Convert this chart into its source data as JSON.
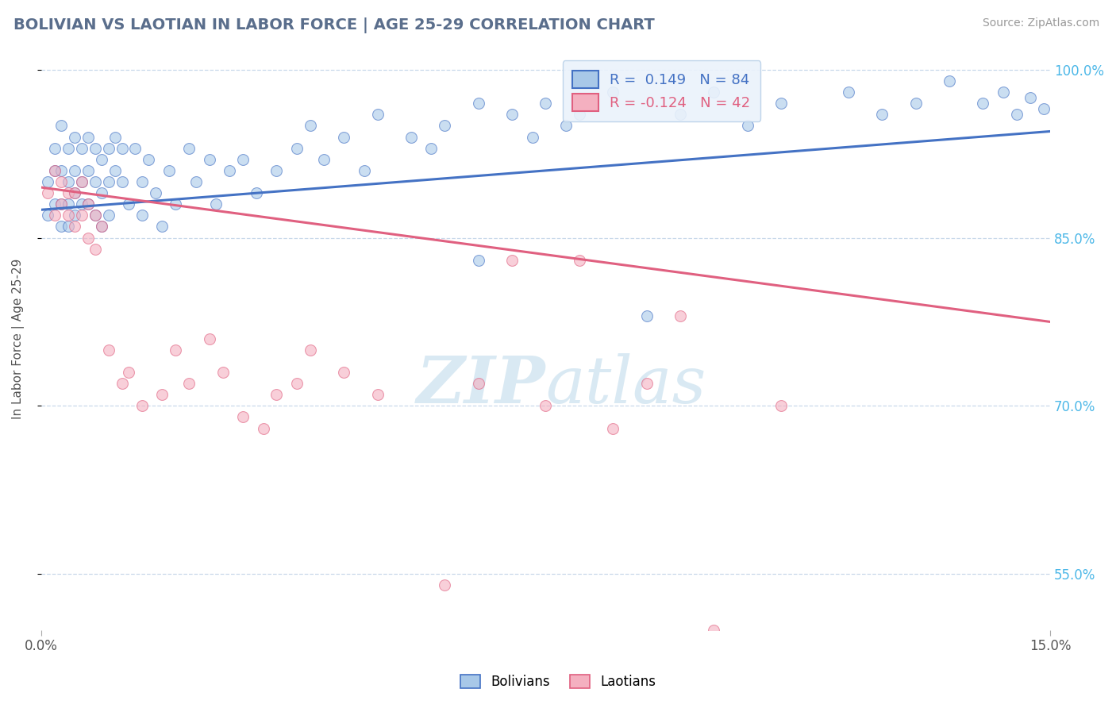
{
  "title": "BOLIVIAN VS LAOTIAN IN LABOR FORCE | AGE 25-29 CORRELATION CHART",
  "source_text": "Source: ZipAtlas.com",
  "ylabel": "In Labor Force | Age 25-29",
  "xlim": [
    0.0,
    0.15
  ],
  "ylim": [
    0.5,
    1.02
  ],
  "yticks": [
    0.55,
    0.7,
    0.85,
    1.0
  ],
  "xticks": [
    0.0,
    0.15
  ],
  "r_blue": 0.149,
  "n_blue": 84,
  "r_pink": -0.124,
  "n_pink": 42,
  "title_color": "#5a6e8c",
  "blue_color": "#a8c8e8",
  "pink_color": "#f4b0c0",
  "line_blue": "#4472c4",
  "line_pink": "#e06080",
  "tick_color": "#4db8e8",
  "watermark_color": "#d0e4f0",
  "blue_scatter": [
    [
      0.001,
      0.9
    ],
    [
      0.001,
      0.87
    ],
    [
      0.002,
      0.93
    ],
    [
      0.002,
      0.91
    ],
    [
      0.002,
      0.88
    ],
    [
      0.003,
      0.95
    ],
    [
      0.003,
      0.91
    ],
    [
      0.003,
      0.88
    ],
    [
      0.003,
      0.86
    ],
    [
      0.004,
      0.93
    ],
    [
      0.004,
      0.9
    ],
    [
      0.004,
      0.88
    ],
    [
      0.004,
      0.86
    ],
    [
      0.005,
      0.94
    ],
    [
      0.005,
      0.91
    ],
    [
      0.005,
      0.89
    ],
    [
      0.005,
      0.87
    ],
    [
      0.006,
      0.93
    ],
    [
      0.006,
      0.9
    ],
    [
      0.006,
      0.88
    ],
    [
      0.007,
      0.94
    ],
    [
      0.007,
      0.91
    ],
    [
      0.007,
      0.88
    ],
    [
      0.008,
      0.93
    ],
    [
      0.008,
      0.9
    ],
    [
      0.008,
      0.87
    ],
    [
      0.009,
      0.92
    ],
    [
      0.009,
      0.89
    ],
    [
      0.009,
      0.86
    ],
    [
      0.01,
      0.93
    ],
    [
      0.01,
      0.9
    ],
    [
      0.01,
      0.87
    ],
    [
      0.011,
      0.94
    ],
    [
      0.011,
      0.91
    ],
    [
      0.012,
      0.93
    ],
    [
      0.012,
      0.9
    ],
    [
      0.013,
      0.88
    ],
    [
      0.014,
      0.93
    ],
    [
      0.015,
      0.9
    ],
    [
      0.015,
      0.87
    ],
    [
      0.016,
      0.92
    ],
    [
      0.017,
      0.89
    ],
    [
      0.018,
      0.86
    ],
    [
      0.019,
      0.91
    ],
    [
      0.02,
      0.88
    ],
    [
      0.022,
      0.93
    ],
    [
      0.023,
      0.9
    ],
    [
      0.025,
      0.92
    ],
    [
      0.026,
      0.88
    ],
    [
      0.028,
      0.91
    ],
    [
      0.03,
      0.92
    ],
    [
      0.032,
      0.89
    ],
    [
      0.035,
      0.91
    ],
    [
      0.038,
      0.93
    ],
    [
      0.04,
      0.95
    ],
    [
      0.042,
      0.92
    ],
    [
      0.045,
      0.94
    ],
    [
      0.048,
      0.91
    ],
    [
      0.05,
      0.96
    ],
    [
      0.055,
      0.94
    ],
    [
      0.058,
      0.93
    ],
    [
      0.06,
      0.95
    ],
    [
      0.065,
      0.97
    ],
    [
      0.065,
      0.83
    ],
    [
      0.07,
      0.96
    ],
    [
      0.073,
      0.94
    ],
    [
      0.075,
      0.97
    ],
    [
      0.078,
      0.95
    ],
    [
      0.08,
      0.96
    ],
    [
      0.085,
      0.98
    ],
    [
      0.09,
      0.78
    ],
    [
      0.095,
      0.96
    ],
    [
      0.1,
      0.98
    ],
    [
      0.105,
      0.95
    ],
    [
      0.11,
      0.97
    ],
    [
      0.12,
      0.98
    ],
    [
      0.125,
      0.96
    ],
    [
      0.13,
      0.97
    ],
    [
      0.135,
      0.99
    ],
    [
      0.14,
      0.97
    ],
    [
      0.143,
      0.98
    ],
    [
      0.145,
      0.96
    ],
    [
      0.147,
      0.975
    ],
    [
      0.149,
      0.965
    ]
  ],
  "pink_scatter": [
    [
      0.001,
      0.89
    ],
    [
      0.002,
      0.91
    ],
    [
      0.002,
      0.87
    ],
    [
      0.003,
      0.9
    ],
    [
      0.003,
      0.88
    ],
    [
      0.004,
      0.89
    ],
    [
      0.004,
      0.87
    ],
    [
      0.005,
      0.89
    ],
    [
      0.005,
      0.86
    ],
    [
      0.006,
      0.9
    ],
    [
      0.006,
      0.87
    ],
    [
      0.007,
      0.88
    ],
    [
      0.007,
      0.85
    ],
    [
      0.008,
      0.87
    ],
    [
      0.008,
      0.84
    ],
    [
      0.009,
      0.86
    ],
    [
      0.01,
      0.75
    ],
    [
      0.012,
      0.72
    ],
    [
      0.013,
      0.73
    ],
    [
      0.015,
      0.7
    ],
    [
      0.018,
      0.71
    ],
    [
      0.02,
      0.75
    ],
    [
      0.022,
      0.72
    ],
    [
      0.025,
      0.76
    ],
    [
      0.027,
      0.73
    ],
    [
      0.03,
      0.69
    ],
    [
      0.033,
      0.68
    ],
    [
      0.035,
      0.71
    ],
    [
      0.038,
      0.72
    ],
    [
      0.04,
      0.75
    ],
    [
      0.045,
      0.73
    ],
    [
      0.05,
      0.71
    ],
    [
      0.06,
      0.54
    ],
    [
      0.065,
      0.72
    ],
    [
      0.07,
      0.83
    ],
    [
      0.075,
      0.7
    ],
    [
      0.08,
      0.83
    ],
    [
      0.085,
      0.68
    ],
    [
      0.09,
      0.72
    ],
    [
      0.095,
      0.78
    ],
    [
      0.1,
      0.5
    ],
    [
      0.11,
      0.7
    ]
  ],
  "background_color": "#ffffff",
  "grid_color": "#c8d8ea",
  "legend_box_facecolor": "#eaf2fb",
  "legend_box_edgecolor": "#b8d0e8"
}
